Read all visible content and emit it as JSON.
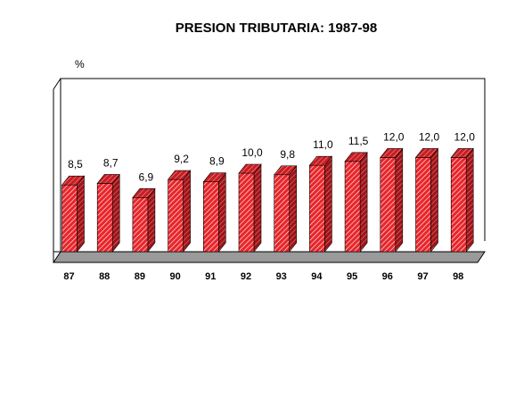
{
  "chart_data": {
    "type": "bar",
    "title": "PRESION TRIBUTARIA: 1987-98",
    "unit_label": "%",
    "categories": [
      "87",
      "88",
      "89",
      "90",
      "91",
      "92",
      "93",
      "94",
      "95",
      "96",
      "97",
      "98"
    ],
    "values": [
      8.5,
      8.7,
      6.9,
      9.2,
      8.9,
      10.0,
      9.8,
      11.0,
      11.5,
      12.0,
      12.0,
      12.0
    ],
    "data_labels": [
      "8,5",
      "8,7",
      "6,9",
      "9,2",
      "8,9",
      "10,0",
      "9,8",
      "11,0",
      "11,5",
      "12,0",
      "12,0",
      "12,0"
    ],
    "ylim": [
      0,
      16
    ],
    "grid": false,
    "legend": "none",
    "style": "3d-hatched",
    "colors": {
      "bar": "#e8262b",
      "bar_side": "#a11317",
      "bar_top": "#c81d22",
      "floor": "#9a9a9a"
    }
  }
}
